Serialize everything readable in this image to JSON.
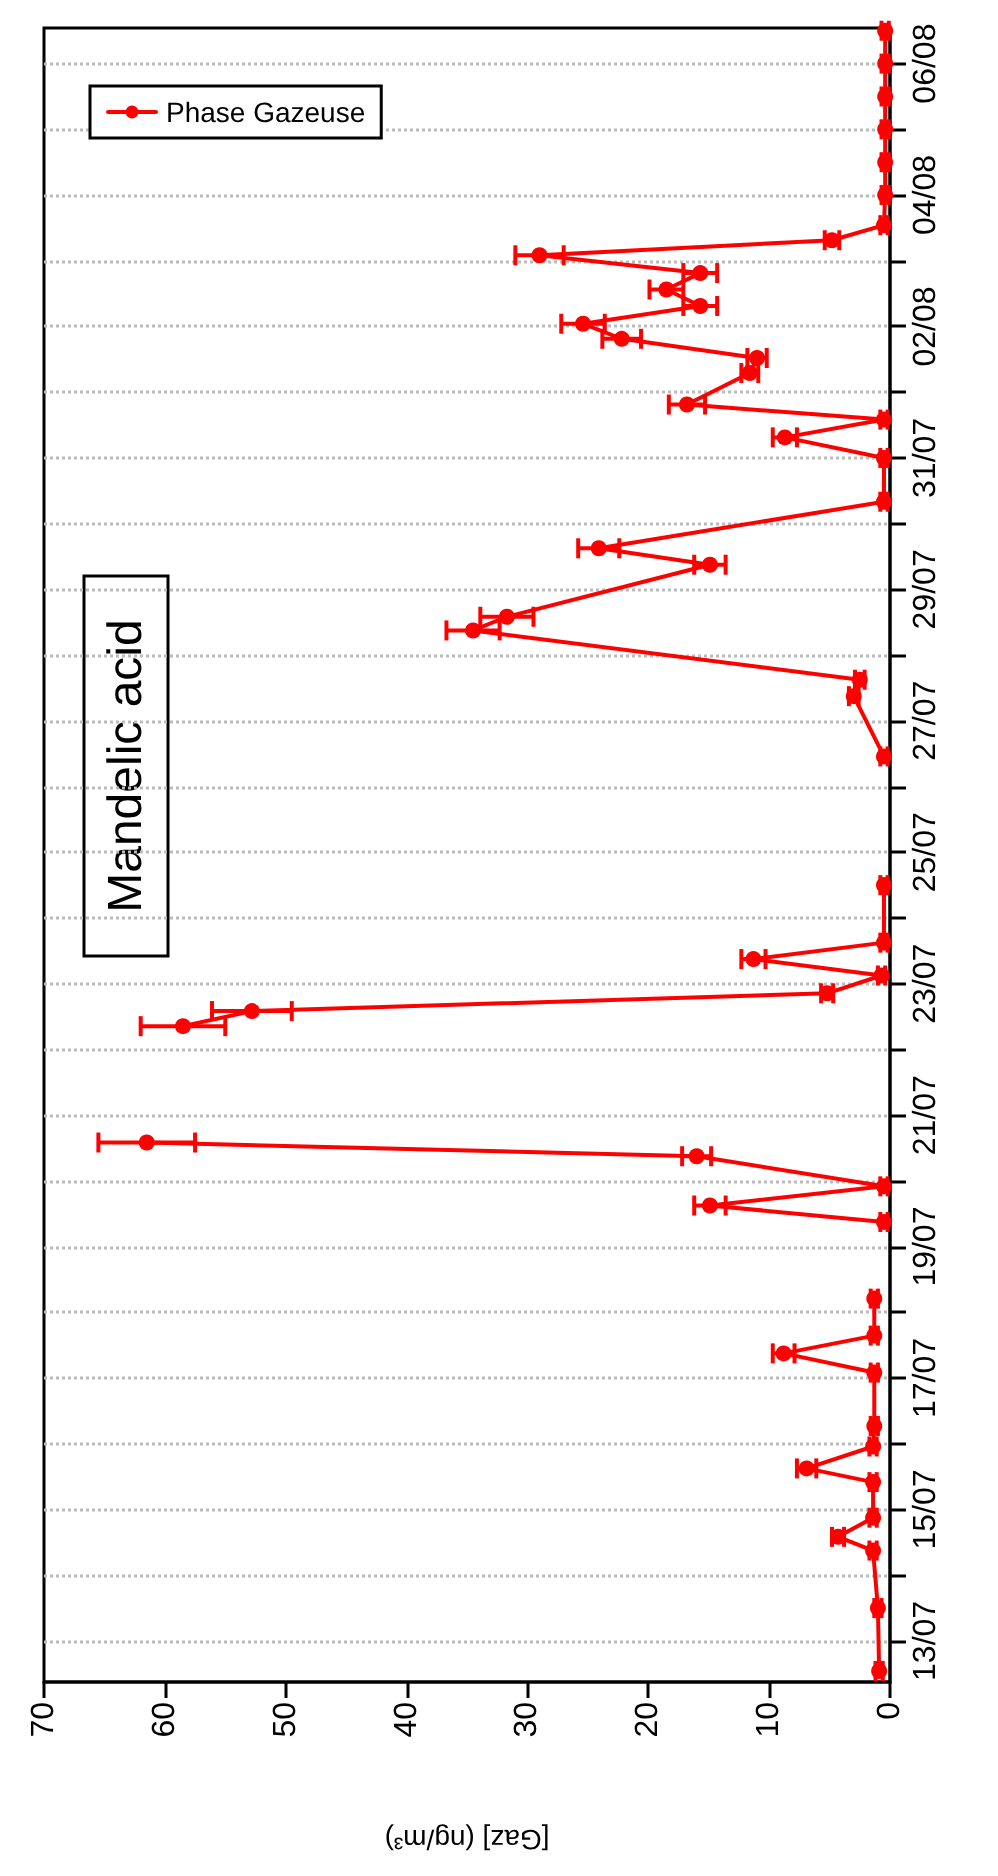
{
  "chart_data": {
    "type": "line",
    "title": "Mandelic acid",
    "xlabel": "[Gaz] (ng/m³)",
    "orientation": "horizontal",
    "x": [
      "--07-12T13:00",
      "--07-13T12:00",
      "--07-14T09:00",
      "--07-14T14:00",
      "--07-14T21:00",
      "--07-15T10:00",
      "--07-15T15:00",
      "--07-15T23:00",
      "--07-16T06:30",
      "--07-17T02:00",
      "--07-17T09:00",
      "--07-17T15:30",
      "--07-18T05:00",
      "--07-18T20:00",
      "--07-19T09:00",
      "--07-19T15:00",
      "--07-19T22:00",
      "--07-20T09:00",
      "--07-20T14:00",
      "--07-21T12:00",
      "--07-22T08:30",
      "--07-22T14:00",
      "--07-22T20:30",
      "--07-23T03:00",
      "--07-23T09:00",
      "--07-23T15:00",
      "--07-24T12:00",
      "--07-25T12:00",
      "--07-26T11:00",
      "--07-27T09:00",
      "--07-27T15:00",
      "--07-28T09:00",
      "--07-28T14:00",
      "--07-29T09:00",
      "--07-29T15:00",
      "--07-30T08:00",
      "--07-31T00:00",
      "--07-31T07:30",
      "--07-31T14:00",
      "--07-31T19:30",
      "--08-01T07:00",
      "--08-01T12:30",
      "--08-01T19:30",
      "--08-02T01:00",
      "--08-02T07:30",
      "--08-02T13:30",
      "--08-02T19:30",
      "--08-03T02:00",
      "--08-03T07:30",
      "--08-03T13:00",
      "--08-04T00:00",
      "--08-04T12:00",
      "--08-05T00:00",
      "--08-05T12:00",
      "--08-06T00:00",
      "--08-06T12:00"
    ],
    "series": [
      {
        "name": "Phase Gazeuse",
        "color": "#ff0000",
        "values": [
          0.9,
          1.0,
          1.4,
          4.3,
          1.4,
          1.4,
          6.9,
          1.4,
          1.3,
          1.3,
          8.8,
          1.3,
          1.3,
          null,
          0.5,
          14.9,
          0.5,
          16.0,
          61.5,
          null,
          58.5,
          52.8,
          5.2,
          0.7,
          11.3,
          0.5,
          0.5,
          null,
          0.5,
          3.0,
          2.5,
          34.5,
          31.7,
          14.9,
          24.1,
          0.5,
          0.5,
          8.7,
          0.5,
          16.8,
          11.6,
          11.0,
          22.2,
          25.4,
          15.7,
          18.5,
          15.7,
          29.0,
          4.8,
          0.5,
          0.4,
          0.4,
          0.4,
          0.4,
          0.4,
          0.4
        ],
        "errors": [
          0.3,
          0.3,
          0.3,
          0.5,
          0.3,
          0.3,
          0.8,
          0.3,
          0.3,
          0.3,
          0.9,
          0.3,
          0.3,
          null,
          0.3,
          1.3,
          0.3,
          1.2,
          4.0,
          null,
          3.5,
          3.3,
          0.5,
          0.3,
          1.0,
          0.3,
          0.3,
          null,
          0.3,
          0.4,
          0.4,
          2.2,
          2.2,
          1.3,
          1.7,
          0.3,
          0.3,
          1.0,
          0.3,
          1.5,
          0.7,
          0.8,
          1.6,
          1.8,
          1.4,
          1.4,
          1.4,
          2.0,
          0.6,
          0.3,
          0.3,
          0.3,
          0.3,
          0.3,
          0.3,
          0.3
        ]
      }
    ],
    "ylim": [
      "--07-12T09:00",
      "--08-06T13:00"
    ],
    "yticks": [
      {
        "value": "--07-13",
        "label": "13/07"
      },
      {
        "value": "--07-14",
        "label": null
      },
      {
        "value": "--07-15",
        "label": "15/07"
      },
      {
        "value": "--07-16",
        "label": null
      },
      {
        "value": "--07-17",
        "label": "17/07"
      },
      {
        "value": "--07-18",
        "label": null
      },
      {
        "value": "--07-19",
        "label": "19/07"
      },
      {
        "value": "--07-20",
        "label": null
      },
      {
        "value": "--07-21",
        "label": "21/07"
      },
      {
        "value": "--07-22",
        "label": null
      },
      {
        "value": "--07-23",
        "label": "23/07"
      },
      {
        "value": "--07-24",
        "label": null
      },
      {
        "value": "--07-25",
        "label": "25/07"
      },
      {
        "value": "--07-26",
        "label": null
      },
      {
        "value": "--07-27",
        "label": "27/07"
      },
      {
        "value": "--07-28",
        "label": null
      },
      {
        "value": "--07-29",
        "label": "29/07"
      },
      {
        "value": "--07-30",
        "label": null
      },
      {
        "value": "--07-31",
        "label": "31/07"
      },
      {
        "value": "--08-01",
        "label": null
      },
      {
        "value": "--08-02",
        "label": "02/08"
      },
      {
        "value": "--08-03",
        "label": null
      },
      {
        "value": "--08-04",
        "label": "04/08"
      },
      {
        "value": "--08-05",
        "label": null
      },
      {
        "value": "--08-06",
        "label": "06/08"
      }
    ],
    "xlim": [
      70,
      0
    ],
    "xticks": [
      0,
      10,
      20,
      30,
      40,
      50,
      60,
      70
    ],
    "grid": "y",
    "legend": "top left",
    "marker": "circle",
    "line_style": "solid"
  }
}
